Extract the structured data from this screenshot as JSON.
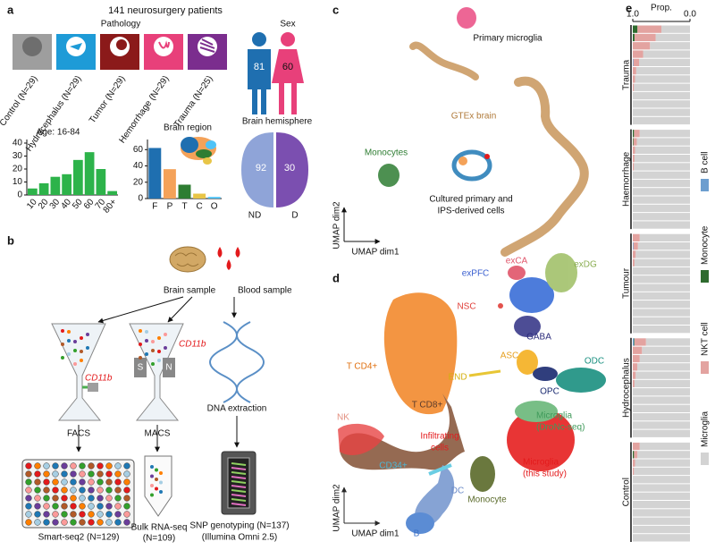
{
  "panel_labels": [
    "a",
    "b",
    "c",
    "d",
    "e"
  ],
  "panel_a": {
    "title": "141 neurosurgery patients",
    "pathology": {
      "title": "Pathology",
      "groups": [
        "Control (N=29)",
        "Hydrocephalus (N=29)",
        "Tumor (N=29)",
        "Hemorrhage (N=29)",
        "Trauma (N=25)"
      ]
    },
    "sex": {
      "title": "Sex",
      "male": 81,
      "female": 60
    },
    "hemisphere": {
      "title": "Brain hemisphere",
      "values": [
        92,
        30
      ],
      "labels": [
        "ND",
        "D"
      ]
    }
  },
  "panel_b": {
    "brain_sample": "Brain sample",
    "blood_sample": "Blood sample",
    "facs_marker": "CD11b",
    "macs_marker": "CD11b",
    "macs_s": "S",
    "macs_n": "N",
    "facs": "FACS",
    "macs": "MACS",
    "dna": "DNA extraction",
    "smartseq": "Smart-seq2 (N=129)",
    "bulk": [
      "Bulk RNA-seq",
      "(N=109)"
    ],
    "snp": [
      "SNP genotyping (N=137)",
      "(Illumina Omni 2.5)"
    ]
  },
  "panel_c": {
    "primary": "Primary microglia",
    "gtex": "GTEx brain",
    "monocytes": "Monocytes",
    "cultured": [
      "Cultured primary and",
      "IPS-derived cells"
    ],
    "ylabel": "UMAP dim2",
    "xlabel": "UMAP dim1"
  },
  "panel_d": {
    "labels": [
      "exCA",
      "exDG",
      "exPFC",
      "NSC",
      "GABA",
      "ASC",
      "ODC",
      "END",
      "OPC",
      "T CD4+",
      "T CD8+",
      "NK",
      "CD34+",
      "DC",
      "Monocyte",
      "B"
    ],
    "microglia_dronc": [
      "Microglia",
      "(DroNc-seq)"
    ],
    "infiltrating": [
      "Infiltrating",
      "cells"
    ],
    "microglia_this": [
      "Microglia",
      "(this study)"
    ],
    "ylabel": "UMAP dim2",
    "xlabel": "UMAP dim1"
  },
  "chart_data": [
    {
      "type": "bar",
      "title": "Age: 16-84",
      "categories": [
        "10",
        "20",
        "30",
        "40",
        "50",
        "60",
        "70",
        "80+"
      ],
      "values": [
        5,
        9,
        14,
        16,
        27,
        33,
        20,
        3
      ],
      "color": "#2db34a",
      "ylim": [
        0,
        40
      ],
      "yticks": [
        0,
        10,
        20,
        30,
        40
      ]
    },
    {
      "type": "bar",
      "title": "Brain region",
      "categories": [
        "F",
        "P",
        "T",
        "C",
        "O"
      ],
      "values": [
        62,
        36,
        17,
        6,
        2
      ],
      "colors": [
        "#1f6fb0",
        "#f4a259",
        "#2e7d32",
        "#e8c547",
        "#4fc3f7"
      ],
      "ylim": [
        0,
        68
      ],
      "yticks": [
        0,
        20,
        40,
        60
      ]
    },
    {
      "type": "stacked-hbar",
      "xlabel": "Prop.",
      "xlim": [
        1,
        0
      ],
      "xticks": [
        {
          "value": 1,
          "label": "1.0"
        },
        {
          "value": 0,
          "label": "0.0"
        }
      ],
      "legend": [
        {
          "name": "B cell",
          "color": "#6d9ecf"
        },
        {
          "name": "Monocyte",
          "color": "#2e6b2e"
        },
        {
          "name": "NKT cell",
          "color": "#e3a3a0"
        },
        {
          "name": "Microglia",
          "color": "#d3d3d3"
        }
      ],
      "groups": [
        {
          "name": "Trauma",
          "series": [
            [
              0,
              0,
              0,
              0,
              0.01,
              0,
              0,
              0,
              0,
              0,
              0,
              0
            ],
            [
              0.08,
              0.03,
              0,
              0,
              0,
              0,
              0,
              0,
              0,
              0,
              0,
              0
            ],
            [
              0.42,
              0.37,
              0.3,
              0.18,
              0.1,
              0.06,
              0.04,
              0.02,
              0,
              0,
              0,
              0
            ],
            [
              0.5,
              0.6,
              0.7,
              0.82,
              0.89,
              0.94,
              0.96,
              0.98,
              1,
              1,
              1,
              1
            ]
          ]
        },
        {
          "name": "Haemorrhage",
          "series": [
            [
              0,
              0,
              0,
              0,
              0,
              0,
              0,
              0,
              0,
              0,
              0,
              0
            ],
            [
              0.02,
              0.01,
              0,
              0,
              0,
              0,
              0,
              0,
              0,
              0,
              0,
              0
            ],
            [
              0.1,
              0.06,
              0.04,
              0.03,
              0.02,
              0,
              0,
              0,
              0,
              0,
              0,
              0
            ],
            [
              0.88,
              0.93,
              0.96,
              0.97,
              0.98,
              1,
              1,
              1,
              1,
              1,
              1,
              1
            ]
          ]
        },
        {
          "name": "Tumour",
          "series": [
            [
              0,
              0.01,
              0,
              0,
              0,
              0,
              0,
              0,
              0,
              0,
              0,
              0
            ],
            [
              0,
              0,
              0,
              0,
              0,
              0,
              0,
              0,
              0,
              0,
              0,
              0
            ],
            [
              0.12,
              0.08,
              0.05,
              0.03,
              0,
              0,
              0,
              0,
              0,
              0,
              0,
              0
            ],
            [
              0.88,
              0.91,
              0.95,
              0.97,
              1,
              1,
              1,
              1,
              1,
              1,
              1,
              1
            ]
          ]
        },
        {
          "name": "Hydrocephalus",
          "series": [
            [
              0.02,
              0,
              0,
              0,
              0,
              0,
              0,
              0,
              0,
              0,
              0,
              0
            ],
            [
              0.01,
              0,
              0,
              0,
              0,
              0,
              0,
              0,
              0,
              0,
              0,
              0
            ],
            [
              0.2,
              0.16,
              0.12,
              0.08,
              0.05,
              0.03,
              0,
              0,
              0,
              0,
              0,
              0
            ],
            [
              0.77,
              0.84,
              0.88,
              0.92,
              0.95,
              0.97,
              1,
              1,
              1,
              1,
              1,
              1
            ]
          ]
        },
        {
          "name": "Control",
          "series": [
            [
              0,
              0,
              0,
              0,
              0,
              0,
              0,
              0,
              0,
              0,
              0,
              0
            ],
            [
              0,
              0.02,
              0,
              0,
              0,
              0,
              0,
              0,
              0,
              0,
              0,
              0
            ],
            [
              0.12,
              0.06,
              0.04,
              0.02,
              0,
              0,
              0,
              0,
              0,
              0,
              0,
              0
            ],
            [
              0.88,
              0.92,
              0.96,
              0.98,
              1,
              1,
              1,
              1,
              1,
              1,
              1,
              1
            ]
          ]
        }
      ]
    }
  ]
}
